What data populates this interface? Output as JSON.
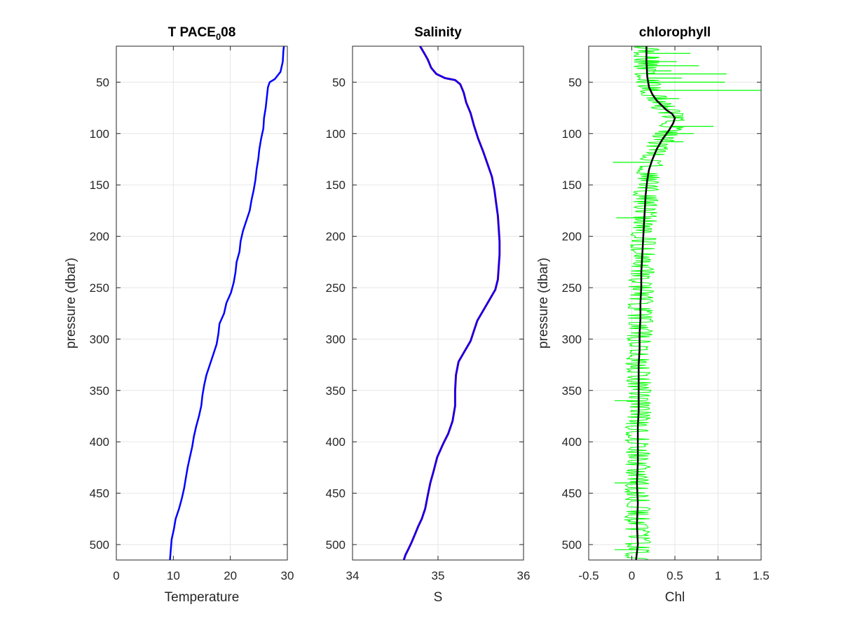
{
  "chart_data": [
    {
      "type": "line",
      "title": "T PACE",
      "title_subscript": "0",
      "title_suffix": "08",
      "xlabel": "Temperature",
      "ylabel": "pressure (dbar)",
      "xlim": [
        0,
        30
      ],
      "ylim": [
        15,
        515
      ],
      "y_reversed": true,
      "x_ticks": [
        "0",
        "10",
        "20",
        "30"
      ],
      "y_ticks": [
        "50",
        "100",
        "150",
        "200",
        "250",
        "300",
        "350",
        "400",
        "450",
        "500"
      ],
      "grid": true,
      "series": [
        {
          "color": "#0000ff",
          "x": [
            29.4,
            29.3,
            29.2,
            28.8,
            27.8,
            26.9,
            26.6,
            26.4,
            26.2,
            25.9,
            25.8,
            25.4,
            25.1,
            24.9,
            24.6,
            24.4,
            24.1,
            23.7,
            23.4,
            22.8,
            22.2,
            21.8,
            21.6,
            21.1,
            20.9,
            20.6,
            20.1,
            19.3,
            18.9,
            18.1,
            17.9,
            17.6,
            17.0,
            16.4,
            15.8,
            15.4,
            15.1,
            14.9,
            14.5,
            14.0,
            13.6,
            13.3,
            12.9,
            12.5,
            12.2,
            11.9,
            11.5,
            11.0,
            10.4,
            10.1,
            9.7,
            9.4
          ],
          "y": [
            15,
            20,
            30,
            40,
            47,
            50,
            55,
            65,
            75,
            85,
            95,
            105,
            115,
            125,
            135,
            145,
            155,
            165,
            175,
            185,
            195,
            205,
            215,
            225,
            235,
            245,
            255,
            265,
            275,
            285,
            295,
            305,
            315,
            325,
            335,
            345,
            355,
            365,
            375,
            385,
            395,
            405,
            415,
            425,
            435,
            445,
            455,
            465,
            475,
            485,
            495,
            515
          ]
        }
      ]
    },
    {
      "type": "line",
      "title": "Salinity",
      "xlabel": "S",
      "xlim": [
        34,
        36
      ],
      "ylim": [
        15,
        515
      ],
      "y_reversed": true,
      "x_ticks": [
        "34",
        "35",
        "36"
      ],
      "y_ticks": [
        "50",
        "100",
        "150",
        "200",
        "250",
        "300",
        "350",
        "400",
        "450",
        "500"
      ],
      "grid": true,
      "series": [
        {
          "color": "#ff0000",
          "x": [
            34.79,
            34.84,
            34.88,
            34.92,
            34.98,
            35.08,
            35.2,
            35.26,
            35.3,
            35.33,
            35.38,
            35.42,
            35.47,
            35.53,
            35.58,
            35.63,
            35.66,
            35.68,
            35.7,
            35.71,
            35.72,
            35.72,
            35.71,
            35.7,
            35.67,
            35.6,
            35.53,
            35.46,
            35.42,
            35.38,
            35.31,
            35.24,
            35.21,
            35.2,
            35.2,
            35.17,
            35.12,
            35.06,
            34.99,
            34.95,
            34.91,
            34.88,
            34.85,
            34.81,
            34.77,
            34.73,
            34.69,
            34.65,
            34.62,
            34.6
          ],
          "y": [
            15,
            22,
            28,
            36,
            42,
            46,
            48,
            52,
            60,
            70,
            80,
            92,
            105,
            118,
            130,
            142,
            155,
            168,
            180,
            192,
            205,
            218,
            230,
            242,
            252,
            262,
            272,
            282,
            292,
            302,
            312,
            322,
            335,
            350,
            365,
            380,
            392,
            402,
            415,
            428,
            440,
            452,
            465,
            475,
            482,
            490,
            498,
            505,
            510,
            515
          ]
        },
        {
          "color": "#0000ff",
          "x": [
            34.79,
            34.84,
            34.88,
            34.92,
            34.98,
            35.08,
            35.2,
            35.26,
            35.3,
            35.33,
            35.38,
            35.42,
            35.47,
            35.53,
            35.58,
            35.63,
            35.66,
            35.68,
            35.7,
            35.71,
            35.72,
            35.72,
            35.71,
            35.7,
            35.67,
            35.6,
            35.53,
            35.46,
            35.42,
            35.38,
            35.31,
            35.24,
            35.21,
            35.2,
            35.2,
            35.17,
            35.12,
            35.06,
            34.99,
            34.95,
            34.91,
            34.88,
            34.85,
            34.81,
            34.77,
            34.73,
            34.69,
            34.65,
            34.62,
            34.6
          ],
          "y": [
            15,
            22,
            28,
            36,
            42,
            46,
            48,
            52,
            60,
            70,
            80,
            92,
            105,
            118,
            130,
            142,
            155,
            168,
            180,
            192,
            205,
            218,
            230,
            242,
            252,
            262,
            272,
            282,
            292,
            302,
            312,
            322,
            335,
            350,
            365,
            380,
            392,
            402,
            415,
            428,
            440,
            452,
            465,
            475,
            482,
            490,
            498,
            505,
            510,
            515
          ]
        }
      ]
    },
    {
      "type": "line",
      "title": "chlorophyll",
      "xlabel": "Chl",
      "ylabel": "pressure (dbar)",
      "xlim": [
        -0.5,
        1.5
      ],
      "ylim": [
        15,
        515
      ],
      "y_reversed": true,
      "x_ticks": [
        "-0.5",
        "0",
        "0.5",
        "1",
        "1.5"
      ],
      "y_ticks": [
        "50",
        "100",
        "150",
        "200",
        "250",
        "300",
        "350",
        "400",
        "450",
        "500"
      ],
      "grid": true,
      "series": [
        {
          "color": "#00ff00",
          "band_halfwidth": 0.13,
          "spikes": [
            {
              "y": 22,
              "x": 0.68
            },
            {
              "y": 26,
              "x": 0.32
            },
            {
              "y": 30,
              "x": 0.52
            },
            {
              "y": 34,
              "x": 0.78
            },
            {
              "y": 39,
              "x": 0.46
            },
            {
              "y": 42,
              "x": 1.1
            },
            {
              "y": 46,
              "x": 0.58
            },
            {
              "y": 50,
              "x": 1.08
            },
            {
              "y": 58,
              "x": 1.5
            },
            {
              "y": 66,
              "x": 0.55
            },
            {
              "y": 75,
              "x": 0.42
            },
            {
              "y": 84,
              "x": 0.6
            },
            {
              "y": 93,
              "x": 0.95
            },
            {
              "y": 100,
              "x": 0.72
            },
            {
              "y": 108,
              "x": 0.6
            },
            {
              "y": 128,
              "x": -0.22
            },
            {
              "y": 182,
              "x": -0.18
            },
            {
              "y": 360,
              "x": -0.2
            },
            {
              "y": 440,
              "x": -0.2
            },
            {
              "y": 505,
              "x": -0.2
            }
          ]
        },
        {
          "color": "#000000",
          "x": [
            0.17,
            0.17,
            0.18,
            0.2,
            0.24,
            0.29,
            0.34,
            0.4,
            0.47,
            0.5,
            0.48,
            0.43,
            0.36,
            0.29,
            0.24,
            0.2,
            0.18,
            0.16,
            0.15,
            0.14,
            0.13,
            0.12,
            0.11,
            0.11,
            0.1,
            0.1,
            0.09,
            0.09,
            0.08,
            0.08,
            0.08,
            0.08,
            0.07,
            0.07,
            0.07,
            0.06,
            0.07,
            0.06,
            0.07,
            0.05
          ],
          "y": [
            15,
            30,
            45,
            55,
            62,
            68,
            72,
            77,
            81,
            85,
            90,
            97,
            105,
            115,
            125,
            135,
            145,
            160,
            175,
            190,
            205,
            220,
            235,
            250,
            265,
            280,
            295,
            310,
            325,
            340,
            355,
            370,
            385,
            400,
            420,
            440,
            460,
            480,
            500,
            515
          ]
        }
      ]
    }
  ]
}
